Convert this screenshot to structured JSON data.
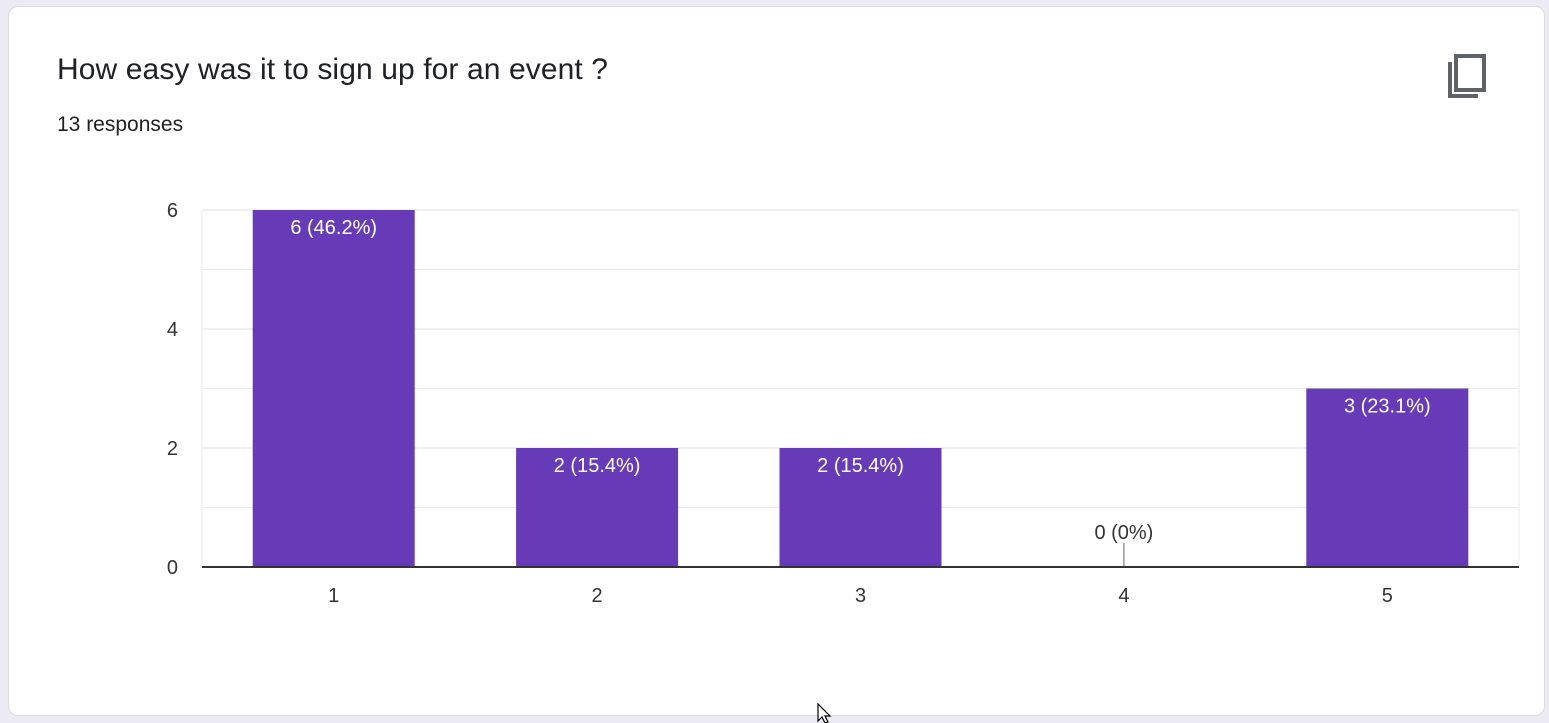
{
  "question": {
    "title": "How easy was it to sign up for an event ?",
    "responses": "13 responses"
  },
  "icons": {
    "copy": "copy-icon",
    "cursor": "mouse-cursor-icon"
  },
  "colors": {
    "bar": "#673ab7",
    "axis": "#333333",
    "grid": "#ebebeb",
    "text": "#202124"
  },
  "chart_data": {
    "type": "bar",
    "categories": [
      "1",
      "2",
      "3",
      "4",
      "5"
    ],
    "values": [
      6,
      2,
      2,
      0,
      3
    ],
    "data_labels": [
      "6 (46.2%)",
      "2 (15.4%)",
      "2 (15.4%)",
      "0 (0%)",
      "3 (23.1%)"
    ],
    "title": "How easy was it to sign up for an event ?",
    "xlabel": "",
    "ylabel": "",
    "ylim": [
      0,
      6
    ],
    "yticks": [
      "0",
      "2",
      "4",
      "6"
    ],
    "grid": true,
    "legend": "none"
  }
}
